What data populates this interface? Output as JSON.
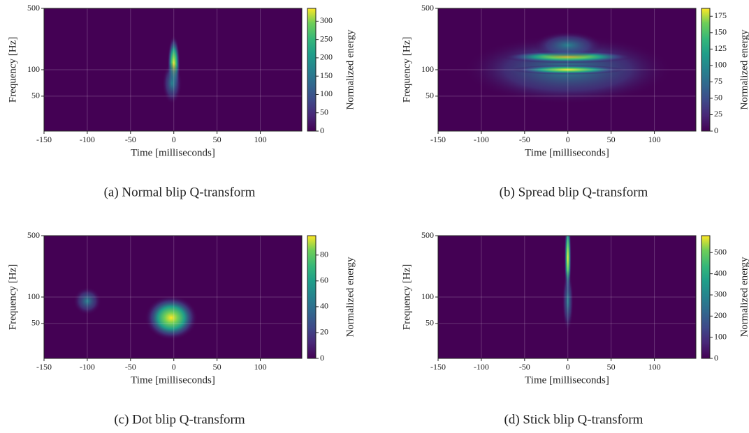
{
  "chart_data": [
    {
      "type": "heatmap",
      "caption": "(a) Normal blip Q-transform",
      "xlabel": "Time [milliseconds]",
      "ylabel": "Frequency [Hz]",
      "colorbar_label": "Normalized energy",
      "xlim": [
        -150,
        148
      ],
      "xticks": [
        -150,
        -100,
        -50,
        0,
        50,
        100
      ],
      "ylim": [
        20,
        500
      ],
      "yticks": [
        50,
        100,
        500
      ],
      "log_y": true,
      "grid": true,
      "clim": [
        0,
        335
      ],
      "cticks": [
        0,
        50,
        100,
        150,
        200,
        250,
        300
      ],
      "colormap": "viridis"
    },
    {
      "type": "heatmap",
      "caption": "(b) Spread blip Q-transform",
      "xlabel": "Time [milliseconds]",
      "ylabel": "Frequency [Hz]",
      "colorbar_label": "Normalized energy",
      "xlim": [
        -150,
        148
      ],
      "xticks": [
        -150,
        -100,
        -50,
        0,
        50,
        100
      ],
      "ylim": [
        20,
        500
      ],
      "yticks": [
        50,
        100,
        500
      ],
      "log_y": true,
      "grid": true,
      "clim": [
        0,
        187
      ],
      "cticks": [
        0,
        25,
        50,
        75,
        100,
        125,
        150,
        175
      ],
      "colormap": "viridis"
    },
    {
      "type": "heatmap",
      "caption": "(c) Dot blip Q-transform",
      "xlabel": "Time [milliseconds]",
      "ylabel": "Frequency [Hz]",
      "colorbar_label": "Normalized energy",
      "xlim": [
        -150,
        148
      ],
      "xticks": [
        -150,
        -100,
        -50,
        0,
        50,
        100
      ],
      "ylim": [
        20,
        500
      ],
      "yticks": [
        50,
        100,
        500
      ],
      "log_y": true,
      "grid": true,
      "clim": [
        0,
        95
      ],
      "cticks": [
        0,
        20,
        40,
        60,
        80
      ],
      "colormap": "viridis"
    },
    {
      "type": "heatmap",
      "caption": "(d) Stick blip Q-transform",
      "xlabel": "Time [milliseconds]",
      "ylabel": "Frequency [Hz]",
      "colorbar_label": "Normalized energy",
      "xlim": [
        -150,
        148
      ],
      "xticks": [
        -150,
        -100,
        -50,
        0,
        50,
        100
      ],
      "ylim": [
        20,
        500
      ],
      "yticks": [
        50,
        100,
        500
      ],
      "log_y": true,
      "grid": true,
      "clim": [
        0,
        580
      ],
      "cticks": [
        0,
        100,
        200,
        300,
        400,
        500
      ],
      "colormap": "viridis"
    }
  ]
}
